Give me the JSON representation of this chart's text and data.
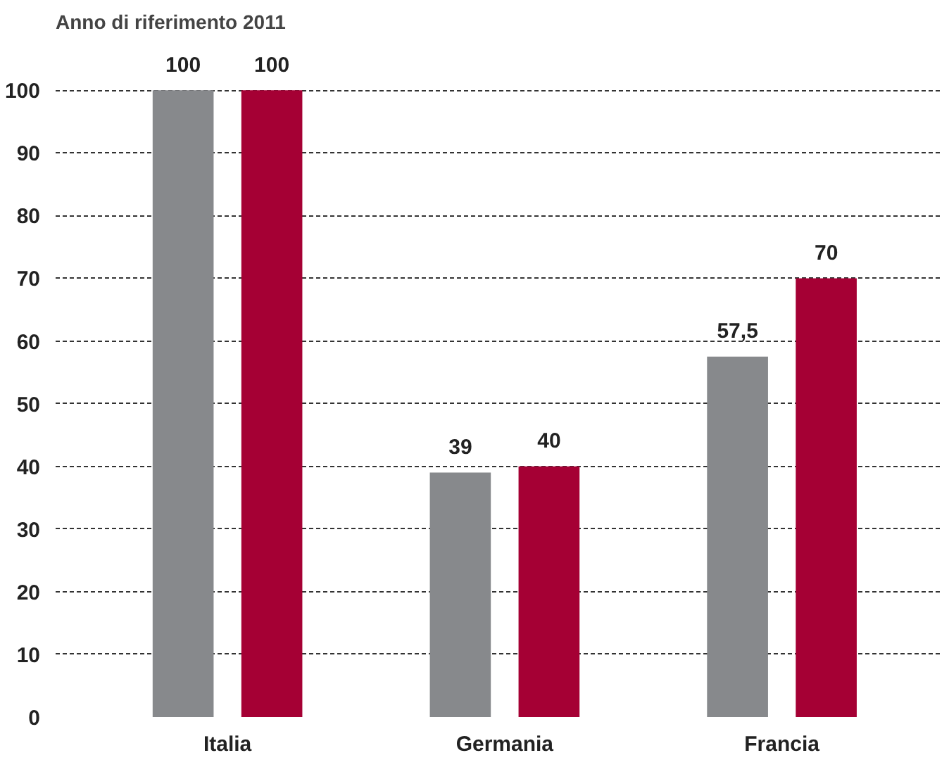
{
  "chart_data": {
    "type": "bar",
    "title": "Anno di riferimento 2011",
    "categories": [
      "Italia",
      "Germania",
      "Francia"
    ],
    "series": [
      {
        "color": "#87898c",
        "values": [
          100,
          39,
          57.5
        ],
        "value_labels": [
          "100",
          "39",
          "57,5"
        ]
      },
      {
        "color": "#a50034",
        "values": [
          100,
          40,
          70
        ],
        "value_labels": [
          "100",
          "40",
          "70"
        ]
      }
    ],
    "ylim": [
      0,
      100
    ],
    "yticks": [
      0,
      10,
      20,
      30,
      40,
      50,
      60,
      70,
      80,
      90,
      100
    ],
    "grid": "y"
  }
}
